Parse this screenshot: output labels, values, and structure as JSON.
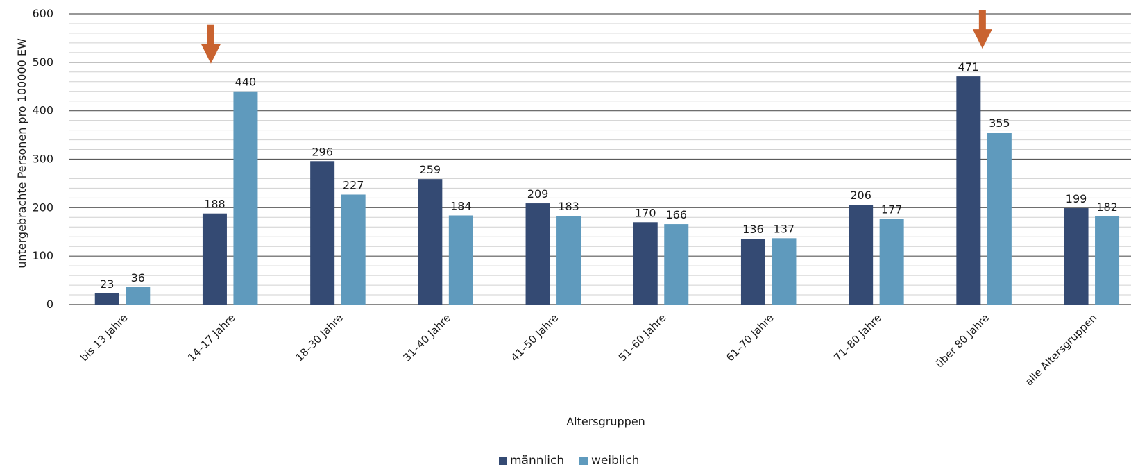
{
  "chart_data": {
    "type": "bar",
    "xlabel": "Altersgruppen",
    "ylabel": "untergebrachte Personen pro 100000 EW",
    "ylim": [
      0,
      600
    ],
    "yticks": [
      0,
      100,
      200,
      300,
      400,
      500,
      600
    ],
    "grid": true,
    "legend_position": "bottom-center",
    "categories": [
      "bis 13 Jahre",
      "14–17 Jahre",
      "18–30 Jahre",
      "31–40 Jahre",
      "41–50 Jahre",
      "51–60 Jahre",
      "61–70 Jahre",
      "71–80 Jahre",
      "über 80 Jahre",
      "alle Altersgruppen"
    ],
    "series": [
      {
        "name": "männlich",
        "color": "#344a73",
        "values": [
          23,
          188,
          296,
          259,
          209,
          170,
          136,
          206,
          471,
          199
        ]
      },
      {
        "name": "weiblich",
        "color": "#5f9abd",
        "values": [
          36,
          440,
          227,
          184,
          183,
          166,
          137,
          177,
          355,
          182
        ]
      }
    ],
    "annotations": [
      {
        "type": "arrow-down",
        "color": "#c96330",
        "category": "14–17 Jahre",
        "series": "weiblich"
      },
      {
        "type": "arrow-down",
        "color": "#c96330",
        "category": "über 80 Jahre",
        "series": "männlich"
      }
    ]
  }
}
